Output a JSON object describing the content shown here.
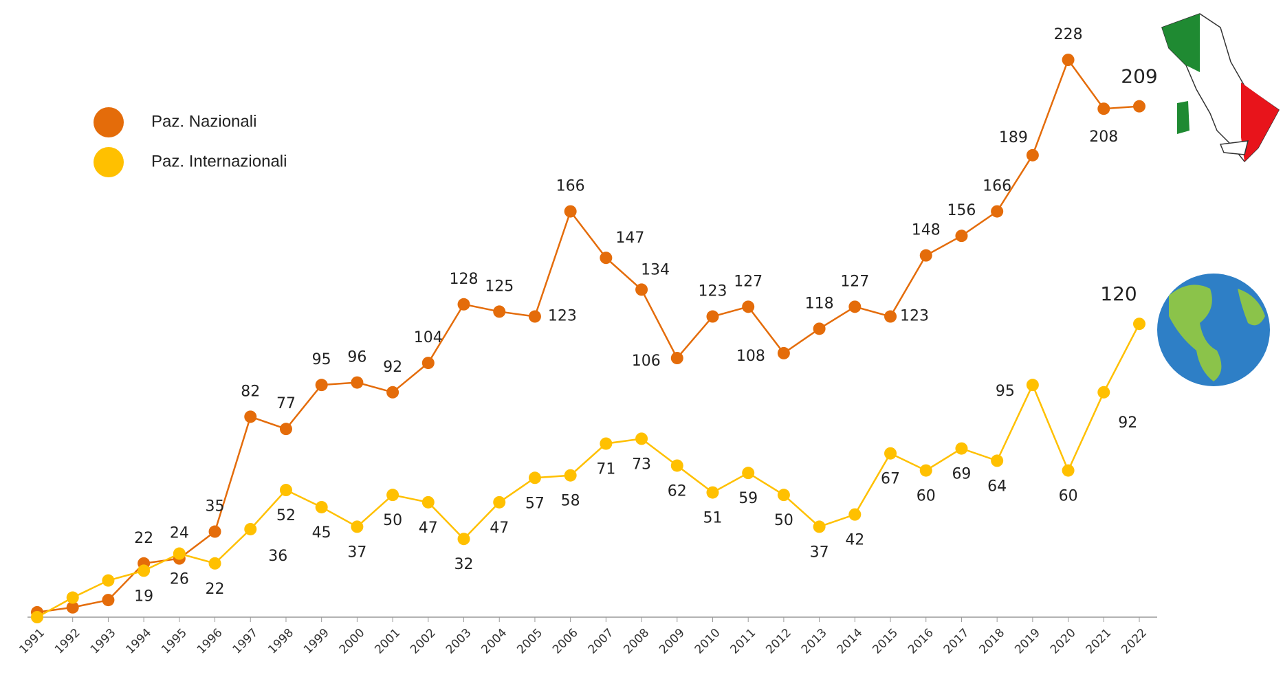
{
  "chart_data": {
    "type": "line",
    "categories": [
      "1991",
      "1992",
      "1993",
      "1994",
      "1995",
      "1996",
      "1997",
      "1998",
      "1999",
      "2000",
      "2001",
      "2002",
      "2003",
      "2004",
      "2005",
      "2006",
      "2007",
      "2008",
      "2009",
      "2010",
      "2011",
      "2012",
      "2013",
      "2014",
      "2015",
      "2016",
      "2017",
      "2018",
      "2019",
      "2020",
      "2021",
      "2022"
    ],
    "ylim": [
      0,
      230
    ],
    "series": [
      {
        "name": "Paz. Nazionali",
        "color": "#e46c0a",
        "values": [
          2,
          4,
          7,
          22,
          24,
          35,
          82,
          77,
          95,
          96,
          92,
          104,
          128,
          125,
          123,
          166,
          147,
          134,
          106,
          123,
          127,
          108,
          118,
          127,
          123,
          148,
          156,
          166,
          189,
          228,
          208,
          209
        ],
        "value_labels": [
          null,
          null,
          null,
          22,
          24,
          35,
          82,
          77,
          95,
          96,
          92,
          104,
          128,
          125,
          123,
          166,
          147,
          134,
          106,
          123,
          127,
          108,
          118,
          127,
          123,
          148,
          156,
          166,
          189,
          228,
          208,
          209
        ]
      },
      {
        "name": "Paz. Internazionali",
        "color": "#ffc000",
        "values": [
          0,
          8,
          15,
          19,
          26,
          22,
          36,
          52,
          45,
          37,
          50,
          47,
          32,
          47,
          57,
          58,
          71,
          73,
          62,
          51,
          59,
          50,
          37,
          42,
          67,
          60,
          69,
          64,
          95,
          60,
          92,
          120
        ],
        "value_labels": [
          null,
          null,
          null,
          19,
          26,
          22,
          36,
          52,
          45,
          37,
          50,
          47,
          32,
          47,
          57,
          58,
          71,
          73,
          62,
          51,
          59,
          50,
          37,
          42,
          67,
          60,
          69,
          64,
          95,
          60,
          92,
          120
        ]
      }
    ]
  }
}
